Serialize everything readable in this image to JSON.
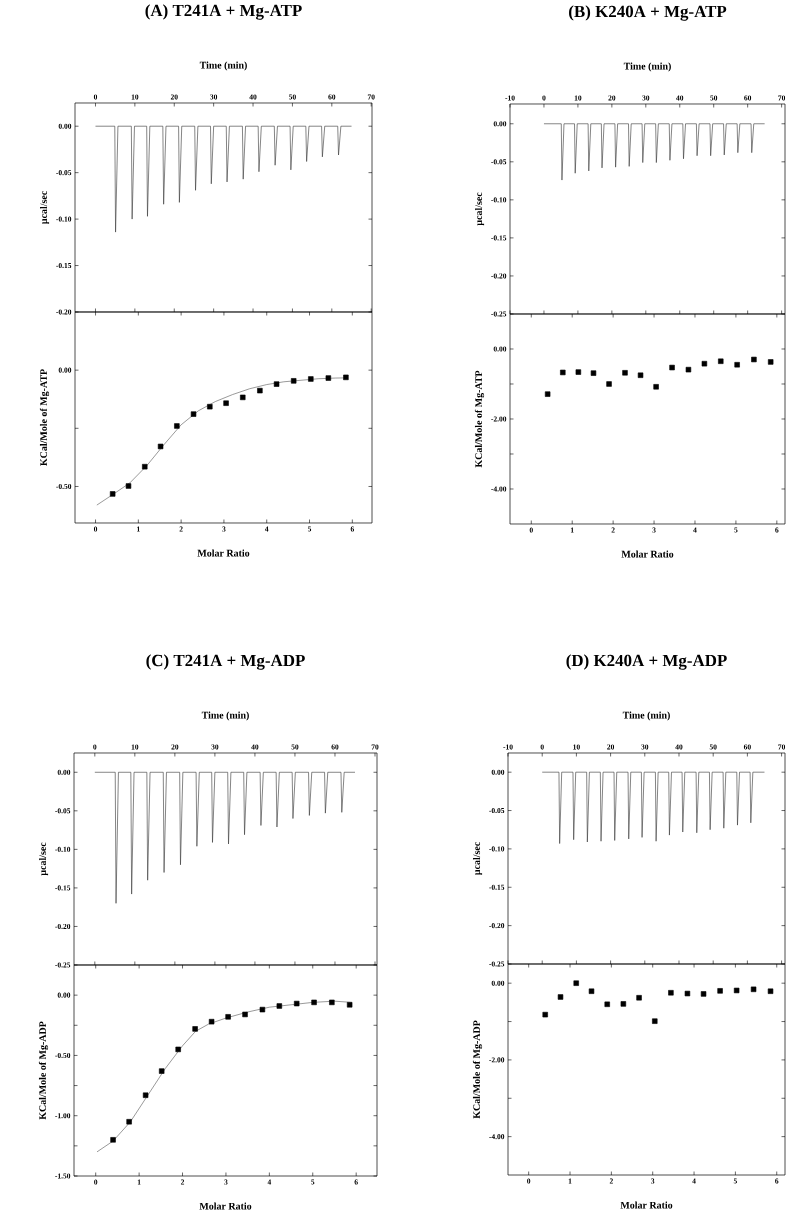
{
  "chart_data": [
    {
      "type": "line",
      "title": "(A) T241A + Mg-ATP",
      "xlabel": "Time (min)",
      "ylabel": "µcal/sec",
      "xlim": [
        -5.2,
        70.2
      ],
      "xticks": [
        0,
        10,
        20,
        30,
        40,
        50,
        60,
        70
      ],
      "ylim": [
        -0.2,
        0.025
      ],
      "yticks": [
        {
          "value": -0.2,
          "label": "-0.20"
        },
        {
          "value": -0.15,
          "label": "-0.15"
        },
        {
          "value": -0.1,
          "label": "-0.10"
        },
        {
          "value": -0.05,
          "label": "-0.05"
        },
        {
          "value": 0,
          "label": "0.00"
        }
      ],
      "series": [
        {
          "color": "#333333",
          "marker": "none",
          "x": [
            0,
            4.9,
            5.1,
            5.7,
            9.1,
            9.3,
            9.9,
            13.0,
            13.2,
            13.8,
            17.1,
            17.3,
            17.9,
            21.1,
            21.3,
            21.9,
            25.2,
            25.4,
            26.0,
            29.2,
            29.4,
            30.0,
            33.2,
            33.4,
            34.0,
            37.3,
            37.5,
            38.1,
            41.3,
            41.5,
            42.1,
            45.4,
            45.6,
            46.2,
            49.4,
            49.6,
            50.2,
            53.4,
            53.6,
            54.2,
            57.4,
            57.6,
            58.2,
            61.5,
            61.7,
            62.3,
            65
          ],
          "values": [
            0,
            0,
            -0.114,
            0,
            0,
            -0.1,
            0,
            0,
            -0.097,
            0,
            0,
            -0.084,
            0,
            0,
            -0.082,
            0,
            0,
            -0.069,
            0,
            0,
            -0.062,
            0,
            0,
            -0.06,
            0,
            0,
            -0.057,
            0,
            0,
            -0.049,
            0,
            0,
            -0.042,
            0,
            0,
            -0.047,
            0,
            0,
            -0.038,
            0,
            0,
            -0.033,
            0,
            0,
            -0.031,
            0,
            0
          ]
        }
      ]
    },
    {
      "type": "scatter",
      "xlabel": "Molar Ratio",
      "ylabel": "KCal/Mole of Mg-ATP",
      "xlim": [
        -0.48,
        6.46
      ],
      "xticks": [
        0,
        1,
        2,
        3,
        4,
        5,
        6
      ],
      "ylim": [
        -0.657,
        0.25
      ],
      "yticks": [
        {
          "value": -0.5,
          "label": "-0.50"
        },
        {
          "value": -0.25,
          "label": null
        },
        {
          "value": 0,
          "label": "0.00"
        }
      ],
      "series": [
        {
          "type": "scatter",
          "color": "#000000",
          "marker": "square",
          "x": [
            0.4,
            0.77,
            1.15,
            1.52,
            1.9,
            2.29,
            2.67,
            3.05,
            3.44,
            3.84,
            4.23,
            4.63,
            5.03,
            5.44,
            5.85
          ],
          "values": [
            -0.532,
            -0.498,
            -0.415,
            -0.328,
            -0.24,
            -0.189,
            -0.157,
            -0.142,
            -0.117,
            -0.088,
            -0.06,
            -0.046,
            -0.038,
            -0.034,
            -0.031
          ]
        },
        {
          "type": "line",
          "color": "#555555",
          "marker": "none",
          "x": [
            0.03,
            0.4,
            0.8,
            1.2,
            1.6,
            2.0,
            2.4,
            2.8,
            3.2,
            3.6,
            4.0,
            4.4,
            5.2,
            5.6,
            5.9
          ],
          "values": [
            -0.58,
            -0.535,
            -0.485,
            -0.41,
            -0.32,
            -0.235,
            -0.175,
            -0.135,
            -0.105,
            -0.08,
            -0.062,
            -0.05,
            -0.037,
            -0.034,
            -0.033
          ]
        }
      ]
    },
    {
      "type": "line",
      "title": "(B) K240A + Mg-ATP",
      "xlabel": "Time (min)",
      "ylabel": "µcal/sec",
      "xlim": [
        -10,
        71
      ],
      "xticks": [
        -10,
        0,
        10,
        20,
        30,
        40,
        50,
        60,
        70
      ],
      "ylim": [
        -0.25,
        0.026
      ],
      "yticks": [
        {
          "value": -0.25,
          "label": "-0.25"
        },
        {
          "value": -0.2,
          "label": "-0.20"
        },
        {
          "value": -0.15,
          "label": "-0.15"
        },
        {
          "value": -0.1,
          "label": "-0.10"
        },
        {
          "value": -0.05,
          "label": "-0.05"
        },
        {
          "value": 0,
          "label": "0.00"
        }
      ],
      "series": [
        {
          "color": "#333333",
          "marker": "none",
          "x": [
            0,
            5.1,
            5.3,
            5.9,
            9.0,
            9.2,
            9.8,
            13.0,
            13.2,
            13.8,
            16.9,
            17.1,
            17.7,
            20.9,
            21.1,
            21.7,
            24.9,
            25.1,
            25.7,
            28.9,
            29.1,
            29.7,
            32.9,
            33.1,
            33.7,
            36.9,
            37.1,
            37.7,
            40.9,
            41.1,
            41.7,
            44.9,
            45.1,
            45.7,
            48.9,
            49.1,
            49.7,
            52.9,
            53.1,
            53.7,
            56.9,
            57.1,
            57.7,
            61.0,
            61.2,
            61.8,
            65
          ],
          "values": [
            0,
            0,
            -0.074,
            0,
            0,
            -0.065,
            0,
            0,
            -0.062,
            0,
            0,
            -0.058,
            0,
            0,
            -0.057,
            0,
            0,
            -0.056,
            0,
            0,
            -0.051,
            0,
            0,
            -0.051,
            0,
            0,
            -0.048,
            0,
            0,
            -0.046,
            0,
            0,
            -0.042,
            0,
            0,
            -0.042,
            0,
            0,
            -0.041,
            0,
            0,
            -0.038,
            0,
            0,
            -0.038,
            0,
            0
          ]
        }
      ]
    },
    {
      "type": "scatter",
      "xlabel": "Molar Ratio",
      "ylabel": "KCal/Mole of Mg-ATP",
      "xlim": [
        -0.52,
        6.2
      ],
      "xticks": [
        0,
        1,
        2,
        3,
        4,
        5,
        6
      ],
      "ylim": [
        -5,
        1
      ],
      "yticks": [
        {
          "value": -4,
          "label": "-4.00"
        },
        {
          "value": -3,
          "label": null
        },
        {
          "value": -2,
          "label": "-2.00"
        },
        {
          "value": -1,
          "label": null
        },
        {
          "value": 0,
          "label": "0.00"
        }
      ],
      "series": [
        {
          "type": "scatter",
          "color": "#000000",
          "marker": "square",
          "x": [
            0.4,
            0.77,
            1.15,
            1.52,
            1.9,
            2.29,
            2.67,
            3.05,
            3.44,
            3.84,
            4.23,
            4.63,
            5.03,
            5.44,
            5.85
          ],
          "values": [
            -1.29,
            -0.67,
            -0.66,
            -0.69,
            -1.0,
            -0.68,
            -0.75,
            -1.08,
            -0.53,
            -0.59,
            -0.42,
            -0.35,
            -0.45,
            -0.3,
            -0.37
          ]
        }
      ]
    },
    {
      "type": "line",
      "title": "(C) T241A + Mg-ADP",
      "xlabel": "Time (min)",
      "ylabel": "µcal/sec",
      "xlim": [
        -5.2,
        70.5
      ],
      "xticks": [
        0,
        10,
        20,
        30,
        40,
        50,
        60,
        70
      ],
      "ylim": [
        -0.25,
        0.025
      ],
      "yticks": [
        {
          "value": -0.25,
          "label": "-0.25"
        },
        {
          "value": -0.2,
          "label": "-0.20"
        },
        {
          "value": -0.15,
          "label": "-0.15"
        },
        {
          "value": -0.1,
          "label": "-0.10"
        },
        {
          "value": -0.05,
          "label": "-0.05"
        },
        {
          "value": 0,
          "label": "0.00"
        }
      ],
      "series": [
        {
          "color": "#333333",
          "marker": "none",
          "x": [
            0,
            5.1,
            5.3,
            5.9,
            9.0,
            9.2,
            9.8,
            13.0,
            13.2,
            13.8,
            17.1,
            17.3,
            17.9,
            21.2,
            21.4,
            22.0,
            25.3,
            25.5,
            26.1,
            29.2,
            29.4,
            30.0,
            33.2,
            33.4,
            34.0,
            37.2,
            37.4,
            38.0,
            41.3,
            41.5,
            42.1,
            45.3,
            45.5,
            46.1,
            49.3,
            49.5,
            50.1,
            53.4,
            53.6,
            54.2,
            57.4,
            57.6,
            58.2,
            61.5,
            61.7,
            62.3,
            65
          ],
          "values": [
            0,
            0,
            -0.17,
            0,
            0,
            -0.158,
            0,
            0,
            -0.14,
            0,
            0,
            -0.13,
            0,
            0,
            -0.12,
            0,
            0,
            -0.096,
            0,
            0,
            -0.091,
            0,
            0,
            -0.093,
            0,
            0,
            -0.081,
            0,
            0,
            -0.069,
            0,
            0,
            -0.071,
            0,
            0,
            -0.06,
            0,
            0,
            -0.056,
            0,
            0,
            -0.053,
            0,
            0,
            -0.052,
            0,
            0
          ]
        }
      ]
    },
    {
      "type": "scatter",
      "xlabel": "Molar Ratio",
      "ylabel": "KCal/Mole of Mg-ADP",
      "xlim": [
        -0.5,
        6.48
      ],
      "xticks": [
        0,
        1,
        2,
        3,
        4,
        5,
        6
      ],
      "ylim": [
        -1.5,
        0.25
      ],
      "yticks": [
        {
          "value": -1.5,
          "label": "-1.50"
        },
        {
          "value": -1.25,
          "label": null
        },
        {
          "value": -1,
          "label": "-1.00"
        },
        {
          "value": -0.75,
          "label": null
        },
        {
          "value": -0.5,
          "label": "-0.50"
        },
        {
          "value": -0.25,
          "label": null
        },
        {
          "value": 0,
          "label": "0.00"
        }
      ],
      "series": [
        {
          "type": "scatter",
          "color": "#000000",
          "marker": "square",
          "x": [
            0.4,
            0.77,
            1.15,
            1.52,
            1.9,
            2.29,
            2.67,
            3.05,
            3.44,
            3.84,
            4.23,
            4.63,
            5.03,
            5.44,
            5.85
          ],
          "values": [
            -1.2,
            -1.05,
            -0.83,
            -0.63,
            -0.45,
            -0.28,
            -0.22,
            -0.18,
            -0.16,
            -0.12,
            -0.09,
            -0.07,
            -0.06,
            -0.06,
            -0.08
          ]
        },
        {
          "type": "line",
          "color": "#555555",
          "marker": "none",
          "x": [
            0.03,
            0.4,
            0.8,
            1.2,
            1.6,
            2.0,
            2.3,
            2.6,
            3.0,
            3.5,
            4.0,
            4.5,
            5.0,
            5.5,
            5.9
          ],
          "values": [
            -1.3,
            -1.21,
            -1.05,
            -0.83,
            -0.61,
            -0.42,
            -0.3,
            -0.24,
            -0.19,
            -0.14,
            -0.1,
            -0.08,
            -0.06,
            -0.05,
            -0.06
          ]
        }
      ]
    },
    {
      "type": "line",
      "title": "(D) K240A + Mg-ADP",
      "xlabel": "Time (min)",
      "ylabel": "µcal/sec",
      "xlim": [
        -10,
        71
      ],
      "xticks": [
        -10,
        0,
        10,
        20,
        30,
        40,
        50,
        60,
        70
      ],
      "ylim": [
        -0.25,
        0.025
      ],
      "yticks": [
        {
          "value": -0.25,
          "label": "-0.25"
        },
        {
          "value": -0.2,
          "label": "-0.20"
        },
        {
          "value": -0.15,
          "label": "-0.15"
        },
        {
          "value": -0.1,
          "label": "-0.10"
        },
        {
          "value": -0.05,
          "label": "-0.05"
        },
        {
          "value": 0,
          "label": "0.00"
        }
      ],
      "series": [
        {
          "color": "#333333",
          "marker": "none",
          "x": [
            0,
            4.9,
            5.1,
            5.7,
            9.0,
            9.2,
            9.8,
            13.0,
            13.2,
            13.8,
            17.0,
            17.2,
            17.8,
            21.0,
            21.2,
            21.8,
            25.1,
            25.3,
            25.9,
            29.0,
            29.2,
            29.8,
            33.1,
            33.3,
            33.9,
            37.0,
            37.2,
            37.8,
            40.9,
            41.1,
            41.7,
            45.0,
            45.2,
            45.8,
            48.9,
            49.1,
            49.7,
            52.9,
            53.1,
            53.7,
            56.9,
            57.1,
            57.7,
            60.8,
            61.0,
            61.6,
            65
          ],
          "values": [
            0,
            0,
            -0.093,
            0,
            0,
            -0.088,
            0,
            0,
            -0.091,
            0,
            0,
            -0.09,
            0,
            0,
            -0.089,
            0,
            0,
            -0.087,
            0,
            0,
            -0.085,
            0,
            0,
            -0.09,
            0,
            0,
            -0.082,
            0,
            0,
            -0.078,
            0,
            0,
            -0.079,
            0,
            0,
            -0.075,
            0,
            0,
            -0.073,
            0,
            0,
            -0.069,
            0,
            0,
            -0.066,
            0,
            0
          ]
        }
      ]
    },
    {
      "type": "scatter",
      "xlabel": "Molar Ratio",
      "ylabel": "KCal/Mole of Mg-ADP",
      "xlim": [
        -0.5,
        6.2
      ],
      "xticks": [
        0,
        1,
        2,
        3,
        4,
        5,
        6
      ],
      "ylim": [
        -5,
        0.5
      ],
      "yticks": [
        {
          "value": -4,
          "label": "-4.00"
        },
        {
          "value": -3,
          "label": null
        },
        {
          "value": -2,
          "label": "-2.00"
        },
        {
          "value": -1,
          "label": null
        },
        {
          "value": 0,
          "label": "0.00"
        }
      ],
      "series": [
        {
          "type": "scatter",
          "color": "#000000",
          "marker": "square",
          "x": [
            0.4,
            0.77,
            1.15,
            1.52,
            1.9,
            2.29,
            2.67,
            3.05,
            3.44,
            3.84,
            4.23,
            4.63,
            5.03,
            5.44,
            5.85
          ],
          "values": [
            -0.82,
            -0.36,
            0.0,
            -0.21,
            -0.55,
            -0.54,
            -0.38,
            -0.99,
            -0.25,
            -0.27,
            -0.28,
            -0.2,
            -0.19,
            -0.16,
            -0.21
          ]
        }
      ]
    }
  ]
}
